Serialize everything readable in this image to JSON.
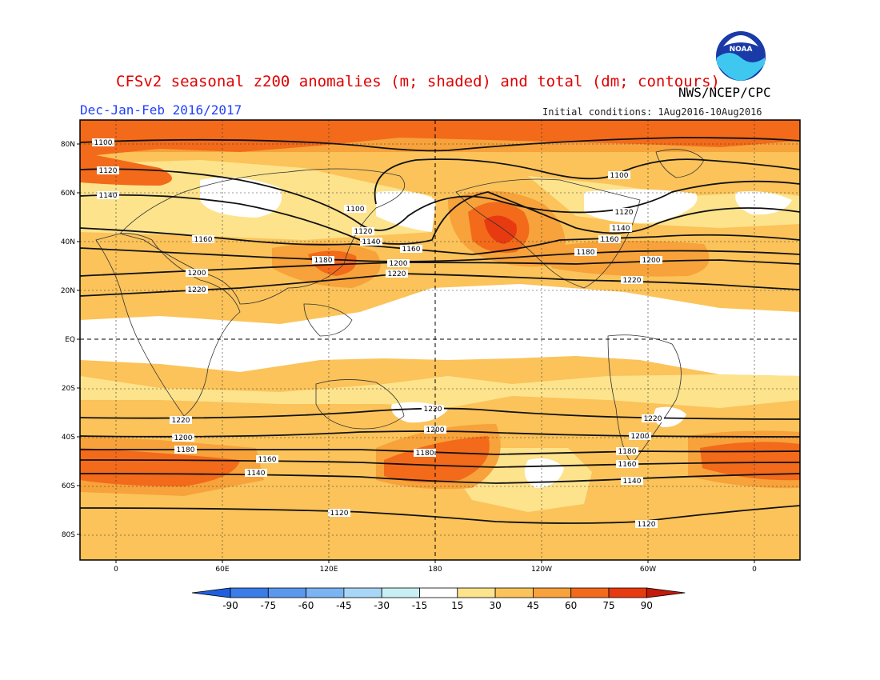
{
  "header": {
    "title": "CFSv2 seasonal z200 anomalies (m; shaded) and total (dm; contours)",
    "season": "Dec-Jan-Feb 2016/2017",
    "credit": "NWS/NCEP/CPC",
    "init": "Initial conditions: 1Aug2016-10Aug2016",
    "logo_text": "NOAA"
  },
  "map": {
    "lat_ticks": [
      "80N",
      "60N",
      "40N",
      "20N",
      "EQ",
      "20S",
      "40S",
      "60S",
      "80S"
    ],
    "lon_ticks": [
      "0",
      "60E",
      "120E",
      "180",
      "120W",
      "60W",
      "0"
    ],
    "contour_levels": [
      1100,
      1120,
      1140,
      1160,
      1180,
      1200,
      1220
    ]
  },
  "colorbar": {
    "levels": [
      "-90",
      "-75",
      "-60",
      "-45",
      "-30",
      "-15",
      "15",
      "30",
      "45",
      "60",
      "75",
      "90"
    ],
    "colors": [
      "#2060e0",
      "#3a7ce8",
      "#5a98ee",
      "#7ab4f2",
      "#a8d6f6",
      "#c8f0f4",
      "#ffffff",
      "#fde38c",
      "#fbc35a",
      "#f7a23a",
      "#f26a1a",
      "#e83a10",
      "#c41a0a"
    ]
  },
  "shading_colors": {
    "c15": "#fde38c",
    "c30": "#fbc35a",
    "c45": "#f7a23a",
    "c60": "#f26a1a",
    "c75": "#e83a10"
  }
}
